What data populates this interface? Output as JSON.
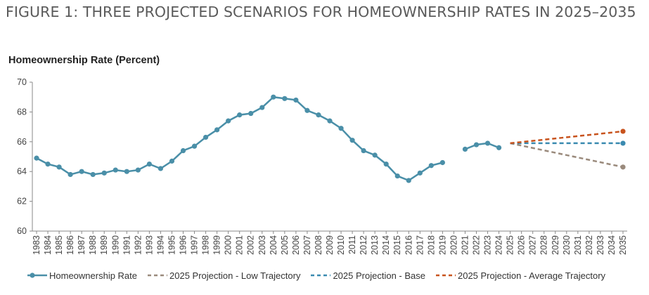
{
  "figure": {
    "title": "FIGURE 1: THREE PROJECTED SCENARIOS FOR HOMEOWNERSHIP RATES IN 2025–2035"
  },
  "chart_data": {
    "type": "line",
    "title": "FIGURE 1: THREE PROJECTED SCENARIOS FOR HOMEOWNERSHIP RATES IN 2025–2035",
    "ylabel": "Homeownership Rate (Percent)",
    "xlabel": "",
    "ylim": [
      60,
      70
    ],
    "yticks": [
      60,
      62,
      64,
      66,
      68,
      70
    ],
    "grid": false,
    "legend_position": "bottom",
    "categories": [
      "1983",
      "1984",
      "1985",
      "1986",
      "1987",
      "1988",
      "1989",
      "1990",
      "1991",
      "1992",
      "1993",
      "1994",
      "1995",
      "1996",
      "1997",
      "1998",
      "1999",
      "2000",
      "2001",
      "2002",
      "2003",
      "2004",
      "2005",
      "2006",
      "2007",
      "2008",
      "2009",
      "2010",
      "2011",
      "2012",
      "2013",
      "2014",
      "2015",
      "2016",
      "2017",
      "2018",
      "2019",
      "2020",
      "2021",
      "2022",
      "2023",
      "2024",
      "2025",
      "2026",
      "2027",
      "2028",
      "2029",
      "2030",
      "2031",
      "2032",
      "2033",
      "2034",
      "2035"
    ],
    "series": [
      {
        "name": "Homeownership Rate",
        "color": "#4a8fa8",
        "style": "solid-markers",
        "points": [
          [
            1983,
            64.9
          ],
          [
            1984,
            64.5
          ],
          [
            1985,
            64.3
          ],
          [
            1986,
            63.8
          ],
          [
            1987,
            64.0
          ],
          [
            1988,
            63.8
          ],
          [
            1989,
            63.9
          ],
          [
            1990,
            64.1
          ],
          [
            1991,
            64.0
          ],
          [
            1992,
            64.1
          ],
          [
            1993,
            64.5
          ],
          [
            1994,
            64.2
          ],
          [
            1995,
            64.7
          ],
          [
            1996,
            65.4
          ],
          [
            1997,
            65.7
          ],
          [
            1998,
            66.3
          ],
          [
            1999,
            66.8
          ],
          [
            2000,
            67.4
          ],
          [
            2001,
            67.8
          ],
          [
            2002,
            67.9
          ],
          [
            2003,
            68.3
          ],
          [
            2004,
            69.0
          ],
          [
            2005,
            68.9
          ],
          [
            2006,
            68.8
          ],
          [
            2007,
            68.1
          ],
          [
            2008,
            67.8
          ],
          [
            2009,
            67.4
          ],
          [
            2010,
            66.9
          ],
          [
            2011,
            66.1
          ],
          [
            2012,
            65.4
          ],
          [
            2013,
            65.1
          ],
          [
            2014,
            64.5
          ],
          [
            2015,
            63.7
          ],
          [
            2016,
            63.4
          ],
          [
            2017,
            63.9
          ],
          [
            2018,
            64.4
          ],
          [
            2019,
            64.6
          ],
          null,
          [
            2021,
            65.5
          ],
          [
            2022,
            65.8
          ],
          [
            2023,
            65.9
          ],
          [
            2024,
            65.6
          ]
        ]
      },
      {
        "name": "2025 Projection - Low Trajectory",
        "color": "#9a8a7c",
        "style": "dashed",
        "points": [
          [
            2025,
            65.9
          ],
          [
            2035,
            64.3
          ]
        ]
      },
      {
        "name": "2025 Projection - Base",
        "color": "#3a8ab0",
        "style": "dashed",
        "points": [
          [
            2025,
            65.9
          ],
          [
            2035,
            65.9
          ]
        ]
      },
      {
        "name": "2025 Projection - Average Trajectory",
        "color": "#c8531d",
        "style": "dashed",
        "points": [
          [
            2025,
            65.9
          ],
          [
            2035,
            66.7
          ]
        ]
      }
    ]
  }
}
